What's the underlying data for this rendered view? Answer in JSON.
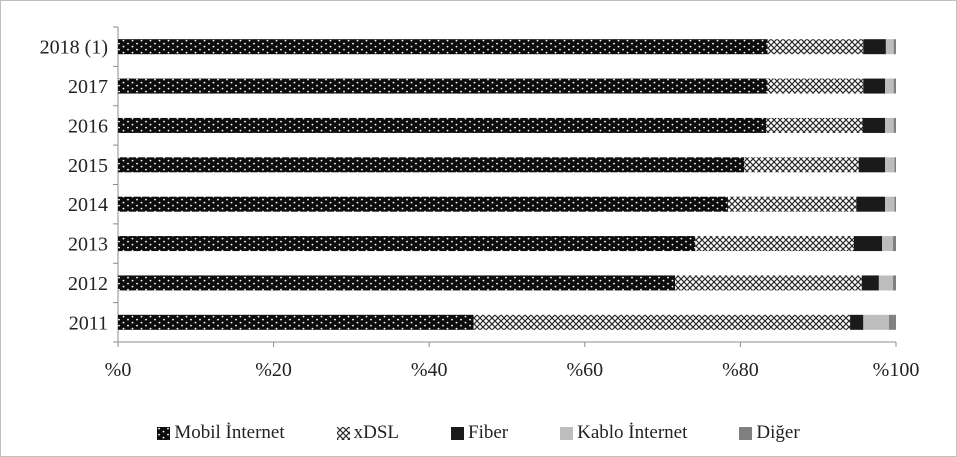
{
  "chart_data": {
    "type": "bar",
    "orientation": "horizontal",
    "stacked": true,
    "title": "",
    "xlabel": "",
    "ylabel": "",
    "xlim": [
      0,
      100
    ],
    "x_ticks": [
      "%0",
      "%20",
      "%40",
      "%60",
      "%80",
      "%100"
    ],
    "grid": false,
    "legend_position": "bottom",
    "categories": [
      "2018 (1)",
      "2017",
      "2016",
      "2015",
      "2014",
      "2013",
      "2012",
      "2011"
    ],
    "series": [
      {
        "name": "Mobil İnternet",
        "pattern": "dotted-black",
        "color": "#111111",
        "values": [
          83.5,
          83.5,
          83.3,
          80.5,
          78.4,
          74.2,
          71.6,
          45.7
        ]
      },
      {
        "name": "xDSL",
        "pattern": "crosshatch",
        "color": "#555555",
        "values": [
          12.3,
          12.3,
          12.4,
          14.7,
          16.5,
          20.4,
          24.0,
          48.4
        ]
      },
      {
        "name": "Fiber",
        "pattern": "solid",
        "color": "#1a1a1a",
        "values": [
          2.9,
          2.8,
          2.9,
          3.4,
          3.7,
          3.6,
          2.2,
          1.7
        ]
      },
      {
        "name": "Kablo İnternet",
        "pattern": "solid",
        "color": "#bdbdbd",
        "values": [
          1.0,
          1.1,
          1.1,
          1.2,
          1.2,
          1.4,
          1.8,
          3.3
        ]
      },
      {
        "name": "Diğer",
        "pattern": "solid",
        "color": "#808080",
        "values": [
          0.3,
          0.3,
          0.3,
          0.2,
          0.2,
          0.4,
          0.4,
          0.9
        ]
      }
    ]
  }
}
